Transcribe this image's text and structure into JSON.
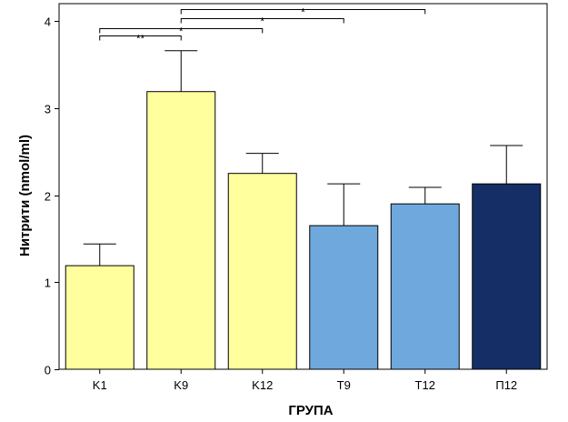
{
  "chart_data": {
    "type": "bar",
    "xlabel": "ГРУПА",
    "ylabel": "Нитрити (nmol/ml)",
    "ylim": [
      0,
      4
    ],
    "yticks": [
      0,
      1,
      2,
      3,
      4
    ],
    "grid": false,
    "categories": [
      "K1",
      "K9",
      "K12",
      "T9",
      "T12",
      "П12"
    ],
    "values": [
      1.19,
      3.19,
      2.25,
      1.65,
      1.9,
      2.13
    ],
    "error_upper": [
      1.44,
      3.66,
      2.48,
      2.13,
      2.09,
      2.57
    ],
    "bar_colors": [
      "#ffff9e",
      "#ffff9e",
      "#ffff9e",
      "#6fa8dc",
      "#6fa8dc",
      "#152f66"
    ],
    "significance": [
      {
        "from": "K1",
        "to": "K9",
        "label": "**",
        "level": 3.83
      },
      {
        "from": "K1",
        "to": "K12",
        "label": "*",
        "level": 3.92
      },
      {
        "from": "K9",
        "to": "T9",
        "label": "*",
        "level": 4.03
      },
      {
        "from": "K9",
        "to": "T12",
        "label": "*",
        "level": 4.14
      }
    ]
  }
}
